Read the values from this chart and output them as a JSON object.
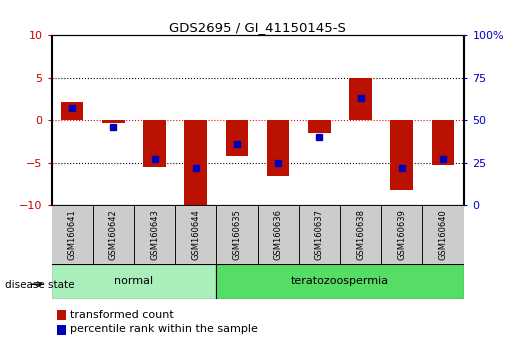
{
  "title": "GDS2695 / GI_41150145-S",
  "samples": [
    "GSM160641",
    "GSM160642",
    "GSM160643",
    "GSM160644",
    "GSM160635",
    "GSM160636",
    "GSM160637",
    "GSM160638",
    "GSM160639",
    "GSM160640"
  ],
  "transformed_count": [
    2.2,
    -0.3,
    -5.5,
    -10.0,
    -4.2,
    -6.5,
    -1.5,
    5.0,
    -8.2,
    -5.2
  ],
  "percentile_rank": [
    57,
    46,
    27,
    22,
    36,
    25,
    40,
    63,
    22,
    27
  ],
  "ylim_left": [
    -10,
    10
  ],
  "ylim_right": [
    0,
    100
  ],
  "yticks_left": [
    -10,
    -5,
    0,
    5,
    10
  ],
  "yticks_right": [
    0,
    25,
    50,
    75,
    100
  ],
  "groups": [
    {
      "label": "normal",
      "start": 0,
      "end": 3
    },
    {
      "label": "teratozoospermia",
      "start": 4,
      "end": 9
    }
  ],
  "disease_state_label": "disease state",
  "bar_color": "#bb1100",
  "percentile_color": "#0000bb",
  "bar_width": 0.55,
  "tick_label_color_left": "#cc0000",
  "tick_label_color_right": "#0000cc",
  "background_color": "#ffffff",
  "normal_group_color": "#aaeebb",
  "terato_group_color": "#55dd66",
  "sample_box_color": "#cccccc",
  "legend_items": [
    "transformed count",
    "percentile rank within the sample"
  ]
}
